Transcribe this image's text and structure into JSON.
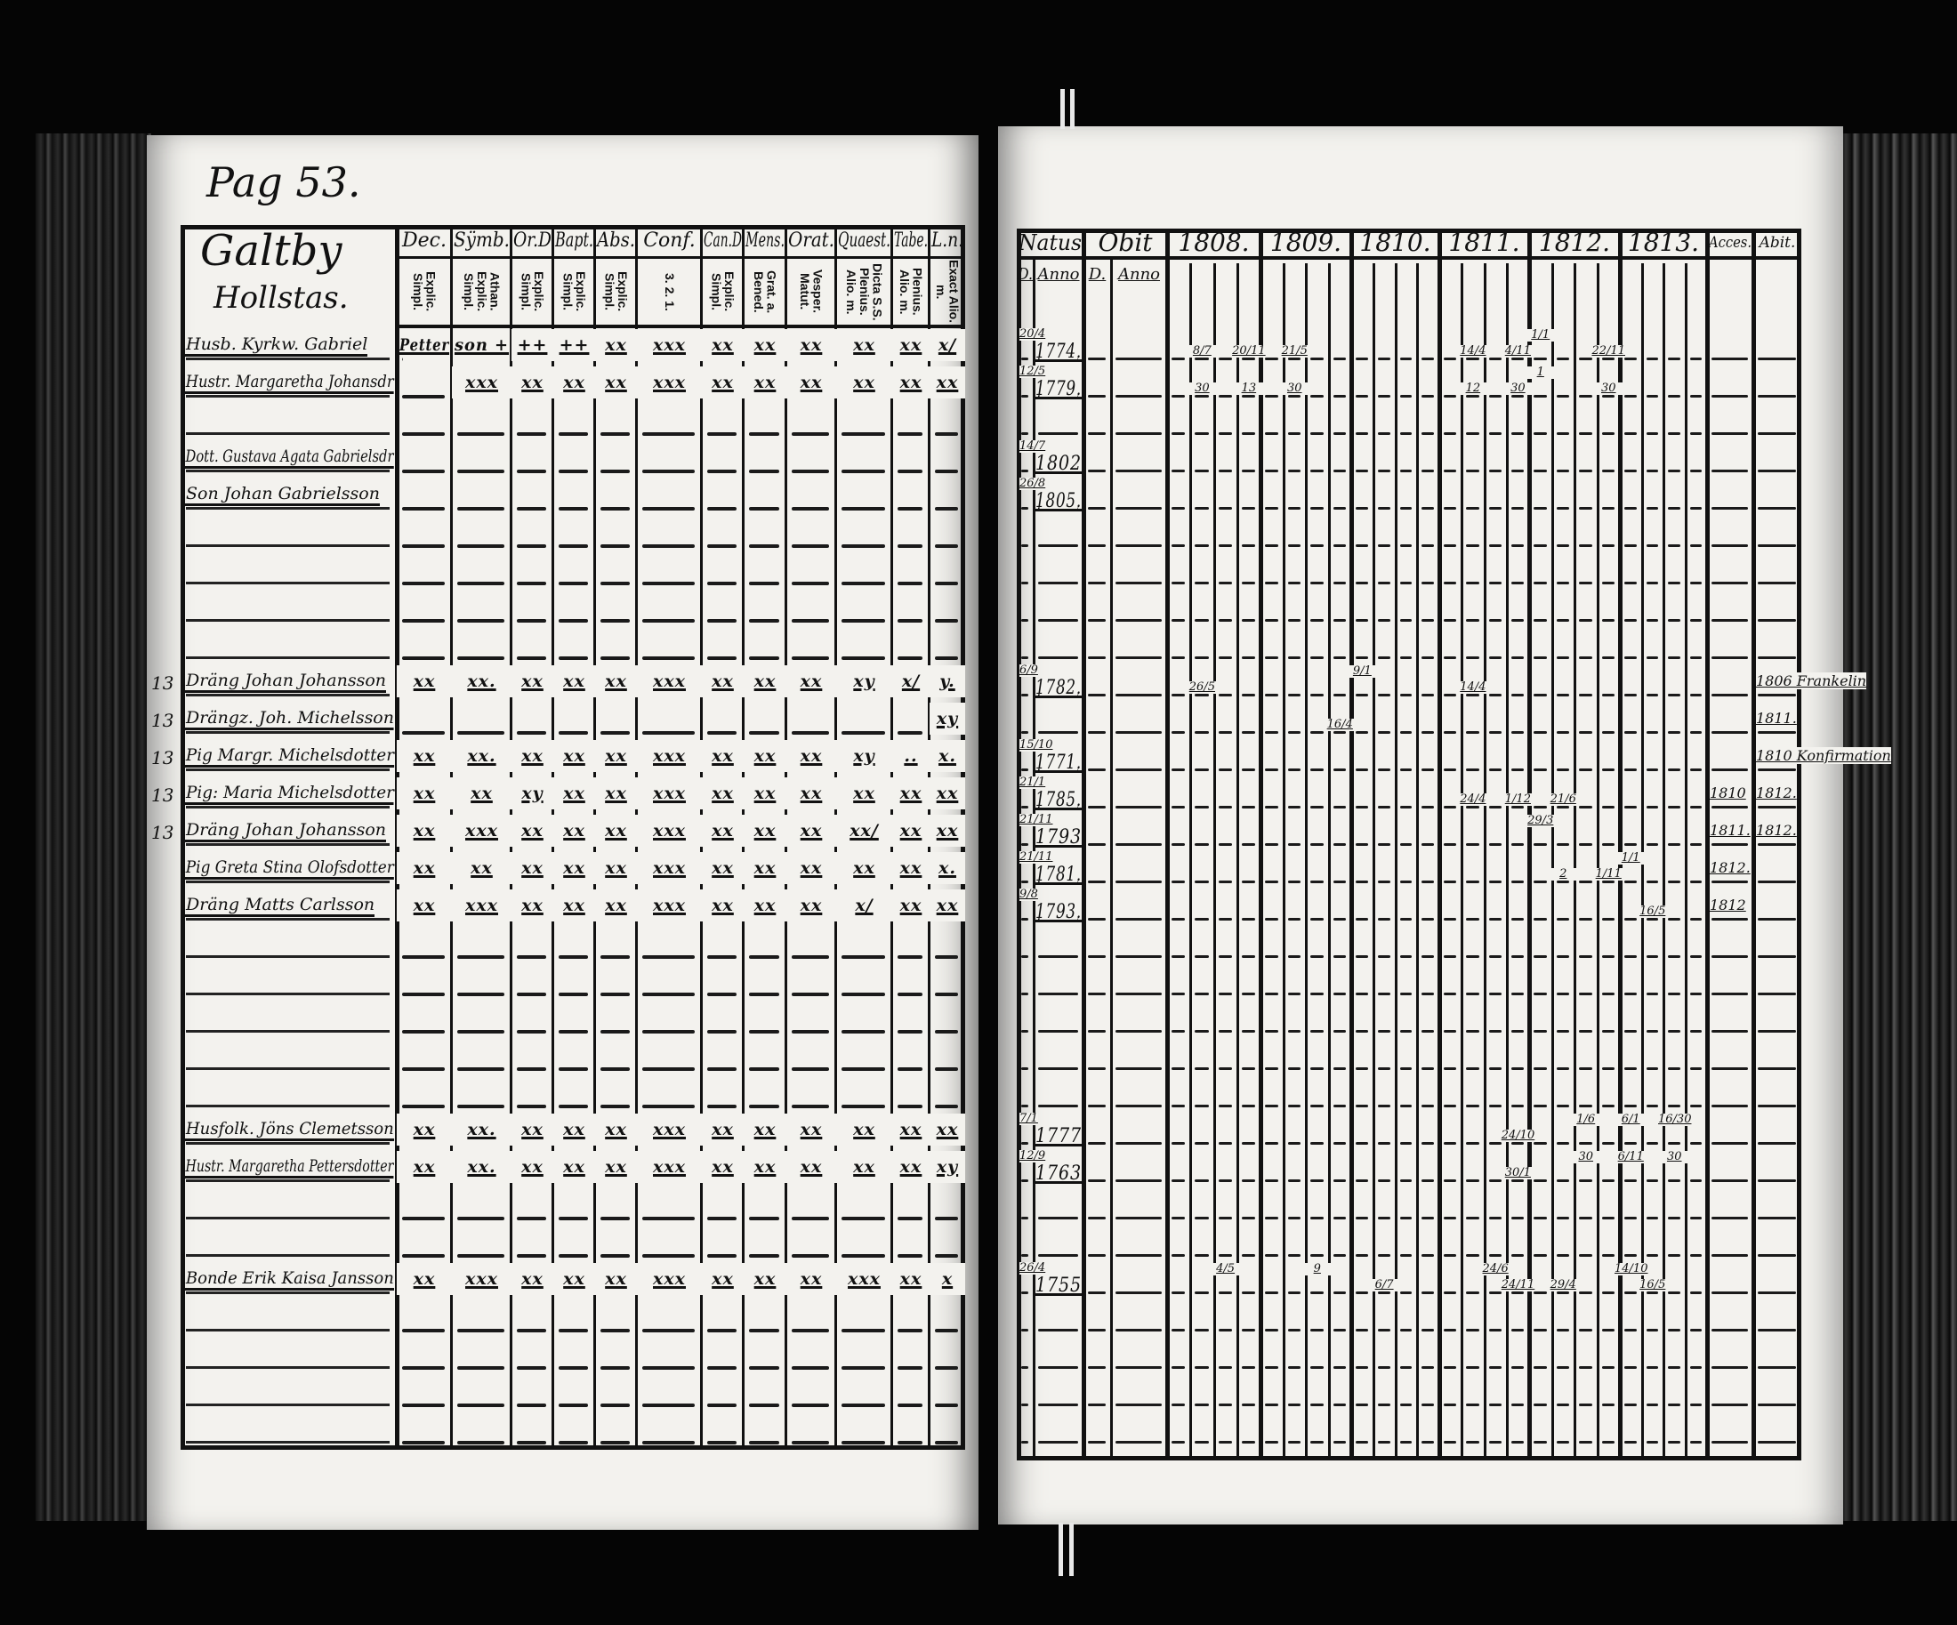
{
  "left_page": {
    "page_label": "Pag 53.",
    "title_lines": [
      "Galtby",
      "Hollstas."
    ],
    "columns": [
      {
        "label": "Dec.",
        "sub": "Explic. Simpl."
      },
      {
        "label": "Sÿmb.",
        "sub": "Athan. Explic. Simpl."
      },
      {
        "label": "Or.D",
        "sub": "Explic. Simpl."
      },
      {
        "label": "Bapt.",
        "sub": "Explic. Simpl."
      },
      {
        "label": "Abs.",
        "sub": "Explic. Simpl."
      },
      {
        "label": "Conf.",
        "sub": "3. 2. 1."
      },
      {
        "label": "Can.D",
        "sub": "Explic. Simpl."
      },
      {
        "label": "Mens.",
        "sub": "Grat. a. Bened."
      },
      {
        "label": "Orat.",
        "sub": "Vesper. Matut."
      },
      {
        "label": "Quaest.",
        "sub": "Dicta S.S. Plenius. Alio. m."
      },
      {
        "label": "Tabe.",
        "sub": "Plenius. Alio. m."
      },
      {
        "label": "L.n.",
        "sub": "Exact Alio. m."
      }
    ],
    "rows": [
      {
        "row": 0,
        "name": "Husb. Kyrkw. Gabriel",
        "marks": [
          "Petter",
          "son +",
          "++",
          "++",
          "xx",
          "xxx",
          "xx",
          "xx",
          "xx",
          "xx",
          "xx",
          "x/"
        ]
      },
      {
        "row": 1,
        "name": "Hustr. Margaretha Johansdr",
        "marks": [
          "",
          "xxx",
          "xx",
          "xx",
          "xx",
          "xxx",
          "xx",
          "xx",
          "xx",
          "xx",
          "xx",
          "xx"
        ]
      },
      {
        "row": 3,
        "name": "Dott. Gustava Agata Gabrielsdr",
        "marks": [
          "",
          "",
          "",
          "",
          "",
          "",
          "",
          "",
          "",
          "",
          "",
          ""
        ]
      },
      {
        "row": 4,
        "name": "Son Johan Gabrielsson",
        "marks": [
          "",
          "",
          "",
          "",
          "",
          "",
          "",
          "",
          "",
          "",
          "",
          ""
        ]
      },
      {
        "row": 9,
        "margin": "13",
        "name": "Dräng Johan Johansson",
        "marks": [
          "xx",
          "xx.",
          "xx",
          "xx",
          "xx",
          "xxx",
          "xx",
          "xx",
          "xx",
          "xy",
          "x/",
          "y."
        ]
      },
      {
        "row": 10,
        "margin": "13",
        "name": "Drängz. Joh. Michelsson",
        "marks": [
          "",
          "",
          "",
          "",
          "",
          "",
          "",
          "",
          "",
          "",
          "",
          "xy"
        ]
      },
      {
        "row": 11,
        "margin": "13",
        "name": "Pig Margr. Michelsdotter",
        "marks": [
          "xx",
          "xx.",
          "xx",
          "xx",
          "xx",
          "xxx",
          "xx",
          "xx",
          "xx",
          "xy",
          "..",
          "x."
        ]
      },
      {
        "row": 12,
        "margin": "13",
        "name": "Pig: Maria Michelsdotter",
        "marks": [
          "xx",
          "xx",
          "xy",
          "xx",
          "xx",
          "xxx",
          "xx",
          "xx",
          "xx",
          "xx",
          "xx",
          "xx"
        ]
      },
      {
        "row": 13,
        "margin": "13",
        "name": "Dräng Johan Johansson",
        "marks": [
          "xx",
          "xxx",
          "xx",
          "xx",
          "xx",
          "xxx",
          "xx",
          "xx",
          "xx",
          "xx/",
          "xx",
          "xx"
        ]
      },
      {
        "row": 14,
        "name": "Pig Greta Stina Olofsdotter",
        "marks": [
          "xx",
          "xx",
          "xx",
          "xx",
          "xx",
          "xxx",
          "xx",
          "xx",
          "xx",
          "xx",
          "xx",
          "x."
        ]
      },
      {
        "row": 15,
        "name": "Dräng Matts Carlsson",
        "marks": [
          "xx",
          "xxx",
          "xx",
          "xx",
          "xx",
          "xxx",
          "xx",
          "xx",
          "xx",
          "x/",
          "xx",
          "xx"
        ]
      },
      {
        "row": 21,
        "name": "Husfolk. Jöns Clemetsson",
        "marks": [
          "xx",
          "xx.",
          "xx",
          "xx",
          "xx",
          "xxx",
          "xx",
          "xx",
          "xx",
          "xx",
          "xx",
          "xx"
        ]
      },
      {
        "row": 22,
        "name": "Hustr. Margaretha Pettersdotter",
        "marks": [
          "xx",
          "xx.",
          "xx",
          "xx",
          "xx",
          "xxx",
          "xx",
          "xx",
          "xx",
          "xx",
          "xx",
          "xy"
        ]
      },
      {
        "row": 25,
        "name": "Bonde Erik Kaisa Jansson",
        "marks": [
          "xx",
          "xxx",
          "xx",
          "xx",
          "xx",
          "xxx",
          "xx",
          "xx",
          "xx",
          "xxx",
          "xx",
          "x"
        ]
      }
    ]
  },
  "right_page": {
    "natus_label": "Natus",
    "obit_label": "Obit",
    "d_label": "D.",
    "anno_label": "Anno",
    "years": [
      "1808.",
      "1809.",
      "1810.",
      "1811.",
      "1812.",
      "1813."
    ],
    "acces_label": "Acces.",
    "abit_label": "Abit.",
    "rows": [
      {
        "row": 0,
        "natus_d": "20/4",
        "natus_anno": "1774.",
        "entries": [
          {
            "year": 0,
            "sub": 1,
            "text": "8/7"
          },
          {
            "year": 0,
            "sub": 3,
            "text": "20/11"
          },
          {
            "year": 1,
            "sub": 1,
            "text": "21/5"
          },
          {
            "year": 3,
            "sub": 1,
            "text": "14/4"
          },
          {
            "year": 3,
            "sub": 3,
            "text": "4/11"
          },
          {
            "year": 4,
            "sub": 0,
            "text": "1/1"
          },
          {
            "year": 4,
            "sub": 3,
            "text": "22/11"
          }
        ]
      },
      {
        "row": 1,
        "natus_d": "12/5",
        "natus_anno": "1779.",
        "entries": [
          {
            "year": 0,
            "sub": 1,
            "text": "30"
          },
          {
            "year": 0,
            "sub": 3,
            "text": "13"
          },
          {
            "year": 1,
            "sub": 1,
            "text": "30"
          },
          {
            "year": 3,
            "sub": 1,
            "text": "12"
          },
          {
            "year": 3,
            "sub": 3,
            "text": "30"
          },
          {
            "year": 4,
            "sub": 0,
            "text": "1"
          },
          {
            "year": 4,
            "sub": 3,
            "text": "30"
          }
        ]
      },
      {
        "row": 3,
        "natus_d": "14/7",
        "natus_anno": "1802",
        "entries": []
      },
      {
        "row": 4,
        "natus_d": "26/8",
        "natus_anno": "1805.",
        "entries": []
      },
      {
        "row": 9,
        "natus_d": "6/9",
        "natus_anno": "1782.",
        "entries": [
          {
            "year": 0,
            "sub": 1,
            "text": "26/5"
          },
          {
            "year": 2,
            "sub": 0,
            "text": "9/1"
          },
          {
            "year": 3,
            "sub": 1,
            "text": "14/4"
          }
        ],
        "abit": "1806 Frankelin"
      },
      {
        "row": 10,
        "natus_d": "",
        "natus_anno": "",
        "entries": [
          {
            "year": 1,
            "sub": 3,
            "text": "16/4"
          }
        ],
        "abit": "1811."
      },
      {
        "row": 11,
        "natus_d": "15/10",
        "natus_anno": "1771.",
        "entries": [],
        "abit": "1810 Konfirmation"
      },
      {
        "row": 12,
        "natus_d": "21/1",
        "natus_anno": "1785.",
        "entries": [
          {
            "year": 3,
            "sub": 1,
            "text": "24/4"
          },
          {
            "year": 3,
            "sub": 3,
            "text": "1/12"
          },
          {
            "year": 4,
            "sub": 1,
            "text": "21/6"
          }
        ],
        "acces": "1810",
        "abit": "1812."
      },
      {
        "row": 13,
        "natus_d": "21/11",
        "natus_anno": "1793",
        "entries": [
          {
            "year": 4,
            "sub": 0,
            "text": "29/3"
          }
        ],
        "acces": "1811.",
        "abit": "1812."
      },
      {
        "row": 14,
        "natus_d": "21/11",
        "natus_anno": "1781.",
        "entries": [
          {
            "year": 4,
            "sub": 1,
            "text": "2"
          },
          {
            "year": 4,
            "sub": 3,
            "text": "1/11"
          },
          {
            "year": 5,
            "sub": 0,
            "text": "1/1"
          }
        ],
        "acces": "1812."
      },
      {
        "row": 15,
        "natus_d": "9/8",
        "natus_anno": "1793.",
        "entries": [
          {
            "year": 5,
            "sub": 1,
            "text": "16/5"
          }
        ],
        "acces": "1812"
      },
      {
        "row": 21,
        "natus_d": "7/1",
        "natus_anno": "1777",
        "entries": [
          {
            "year": 3,
            "sub": 3,
            "text": "24/10"
          },
          {
            "year": 4,
            "sub": 2,
            "text": "1/6"
          },
          {
            "year": 5,
            "sub": 0,
            "text": "6/1"
          },
          {
            "year": 5,
            "sub": 2,
            "text": "16/30"
          }
        ]
      },
      {
        "row": 22,
        "natus_d": "12/9",
        "natus_anno": "1763",
        "entries": [
          {
            "year": 3,
            "sub": 3,
            "text": "30/1"
          },
          {
            "year": 4,
            "sub": 2,
            "text": "30"
          },
          {
            "year": 5,
            "sub": 0,
            "text": "6/11"
          },
          {
            "year": 5,
            "sub": 2,
            "text": "30"
          }
        ]
      },
      {
        "row": 25,
        "natus_d": "26/4",
        "natus_anno": "1755",
        "entries": [
          {
            "year": 0,
            "sub": 2,
            "text": "4/5"
          },
          {
            "year": 1,
            "sub": 2,
            "text": "9"
          },
          {
            "year": 2,
            "sub": 1,
            "text": "6/7"
          },
          {
            "year": 3,
            "sub": 2,
            "text": "24/6"
          },
          {
            "year": 3,
            "sub": 3,
            "text": "24/11"
          },
          {
            "year": 4,
            "sub": 1,
            "text": "29/4"
          },
          {
            "year": 5,
            "sub": 0,
            "text": "14/10"
          },
          {
            "year": 5,
            "sub": 1,
            "text": "16/5"
          }
        ]
      }
    ]
  }
}
